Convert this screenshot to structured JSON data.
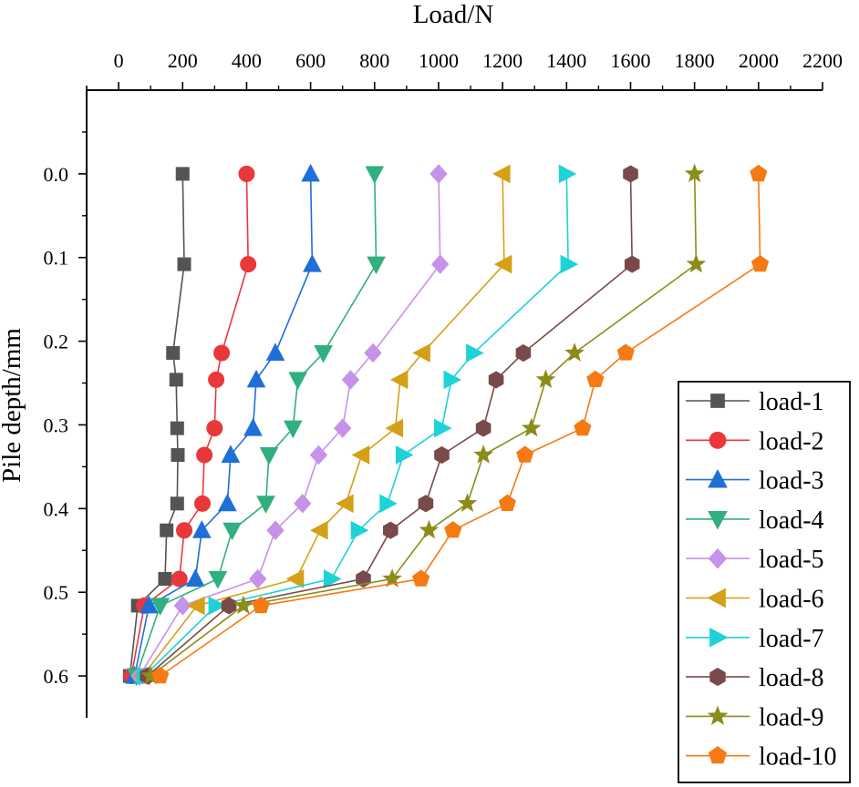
{
  "chart_data": {
    "type": "line",
    "xlabel": "Load/N",
    "ylabel": "Pile depth/mm",
    "x_axis_position": "top",
    "y_inverted": true,
    "xlim": [
      -100,
      2200
    ],
    "ylim": [
      -0.1,
      0.65
    ],
    "xticks": [
      0,
      200,
      400,
      600,
      800,
      1000,
      1200,
      1400,
      1600,
      1800,
      2000,
      2200
    ],
    "xtick_labels": [
      "0",
      "200",
      "400",
      "600",
      "800",
      "1000",
      "1200",
      "1400",
      "1600",
      "1800",
      "2000",
      "2200"
    ],
    "yticks": [
      0.0,
      0.1,
      0.2,
      0.3,
      0.4,
      0.5,
      0.6
    ],
    "ytick_labels": [
      "0.0",
      "0.1",
      "0.2",
      "0.3",
      "0.4",
      "0.5",
      "0.6"
    ],
    "legend_position": "bottom-right",
    "depths": [
      0.0,
      0.108,
      0.214,
      0.246,
      0.304,
      0.336,
      0.394,
      0.426,
      0.484,
      0.516,
      0.6
    ],
    "series": [
      {
        "name": "load-1",
        "color": "#545454",
        "marker": "square",
        "values": [
          200,
          205,
          170,
          180,
          183,
          185,
          183,
          150,
          145,
          60,
          35
        ]
      },
      {
        "name": "load-2",
        "color": "#e8383a",
        "marker": "circle",
        "values": [
          400,
          405,
          322,
          305,
          300,
          268,
          262,
          205,
          190,
          80,
          40
        ]
      },
      {
        "name": "load-3",
        "color": "#1f6fd8",
        "marker": "triangle-up",
        "values": [
          600,
          605,
          490,
          430,
          420,
          350,
          340,
          260,
          240,
          95,
          50
        ]
      },
      {
        "name": "load-4",
        "color": "#2fb07e",
        "marker": "triangle-down",
        "values": [
          800,
          805,
          640,
          560,
          545,
          470,
          460,
          355,
          310,
          130,
          55
        ]
      },
      {
        "name": "load-5",
        "color": "#c792ea",
        "marker": "diamond",
        "values": [
          1000,
          1005,
          795,
          725,
          700,
          625,
          575,
          490,
          435,
          200,
          65
        ]
      },
      {
        "name": "load-6",
        "color": "#d4a017",
        "marker": "triangle-left",
        "values": [
          1200,
          1205,
          950,
          880,
          865,
          760,
          710,
          630,
          555,
          245,
          75
        ]
      },
      {
        "name": "load-7",
        "color": "#1ed2d8",
        "marker": "triangle-right",
        "values": [
          1400,
          1405,
          1110,
          1040,
          1010,
          890,
          840,
          750,
          665,
          305,
          80
        ]
      },
      {
        "name": "load-8",
        "color": "#7a4a4a",
        "marker": "hexagon",
        "values": [
          1600,
          1605,
          1265,
          1180,
          1140,
          1010,
          960,
          850,
          765,
          345,
          90
        ]
      },
      {
        "name": "load-9",
        "color": "#8c8c1a",
        "marker": "star",
        "values": [
          1800,
          1805,
          1425,
          1335,
          1290,
          1140,
          1090,
          970,
          855,
          390,
          100
        ]
      },
      {
        "name": "load-10",
        "color": "#f57a14",
        "marker": "pentagon",
        "values": [
          2000,
          2005,
          1585,
          1490,
          1450,
          1270,
          1215,
          1045,
          945,
          445,
          130
        ]
      }
    ]
  }
}
